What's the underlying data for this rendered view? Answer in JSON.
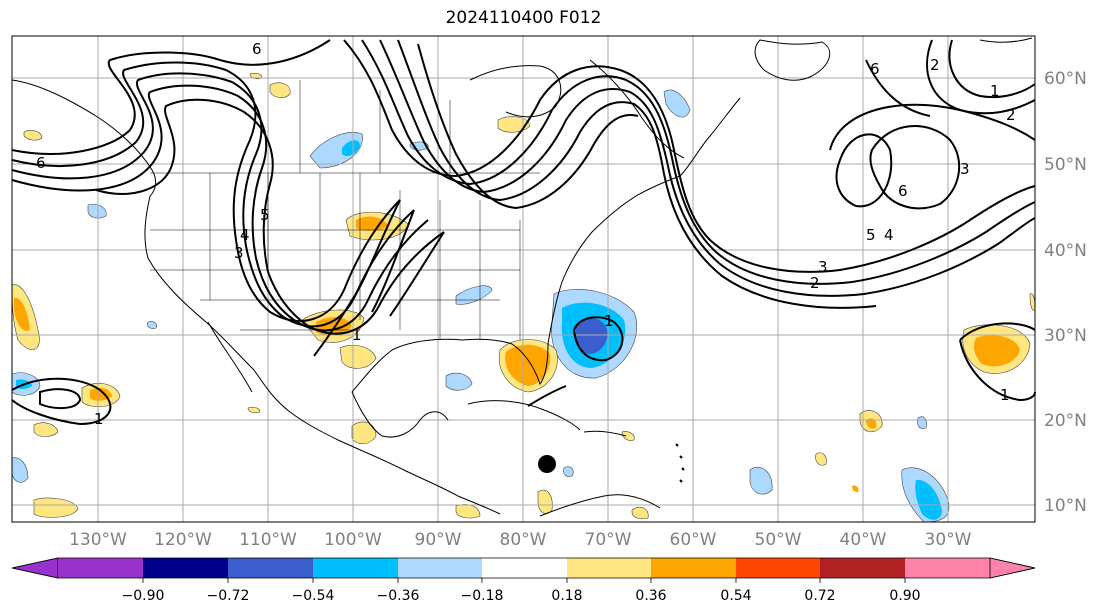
{
  "title": "2024110400 F012",
  "longitude_labels": [
    "130°W",
    "120°W",
    "110°W",
    "100°W",
    "90°W",
    "80°W",
    "70°W",
    "60°W",
    "50°W",
    "40°W",
    "30°W"
  ],
  "latitude_labels": [
    "60°N",
    "50°N",
    "40°N",
    "30°N",
    "20°N",
    "10°N"
  ],
  "colorbar": {
    "tick_labels": [
      "−0.90",
      "−0.72",
      "−0.54",
      "−0.36",
      "−0.18",
      "0.18",
      "0.36",
      "0.54",
      "0.72",
      "0.90"
    ],
    "colors": [
      "#9932cc",
      "#00008b",
      "#3a5fcd",
      "#00bfff",
      "#add8ff",
      "#ffffff",
      "#ffe680",
      "#ffa500",
      "#ff4500",
      "#b22222",
      "#ff82ab"
    ]
  },
  "contour_labels": [
    "6",
    "6",
    "6",
    "5",
    "4",
    "3",
    "2",
    "1",
    "1",
    "1",
    "1",
    "6",
    "5",
    "4",
    "3",
    "2",
    "1",
    "2",
    "3"
  ],
  "colors": {
    "light_blue": "#add8ff",
    "blue": "#00bfff",
    "royal_blue": "#3a5fcd",
    "yellow": "#ffe680",
    "orange": "#ffa500",
    "grid": "#aaaaaa",
    "coast": "#000000"
  }
}
